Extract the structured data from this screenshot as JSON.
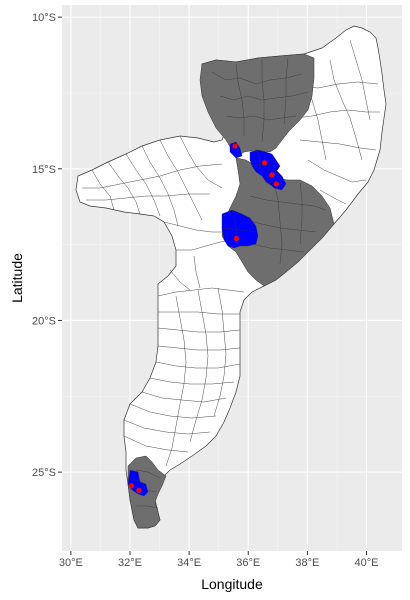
{
  "map": {
    "xlabel": "Longitude",
    "ylabel": "Latitude",
    "x_ticks": [
      {
        "value": 30,
        "label": "30°E"
      },
      {
        "value": 32,
        "label": "32°E"
      },
      {
        "value": 34,
        "label": "34°E"
      },
      {
        "value": 36,
        "label": "36°E"
      },
      {
        "value": 38,
        "label": "38°E"
      },
      {
        "value": 40,
        "label": "40°E"
      }
    ],
    "y_ticks": [
      {
        "value": -10,
        "label": "10°S"
      },
      {
        "value": -15,
        "label": "15°S"
      },
      {
        "value": -20,
        "label": "20°S"
      },
      {
        "value": -25,
        "label": "25°S"
      }
    ],
    "xlim": [
      29.7,
      41.2
    ],
    "ylim": [
      -27.6,
      -9.6
    ],
    "colors": {
      "panel_background": "#ebebeb",
      "grid_major": "#ffffff",
      "district_fill": "#ffffff",
      "district_border": "#333333",
      "selected_region_fill": "#6e6e6e",
      "highlighted_district_fill": "#0000ff",
      "point_color": "#ff0000"
    },
    "points": [
      {
        "lon": 35.55,
        "lat": -14.25
      },
      {
        "lon": 36.55,
        "lat": -14.8
      },
      {
        "lon": 36.8,
        "lat": -15.2
      },
      {
        "lon": 36.95,
        "lat": -15.5
      },
      {
        "lon": 35.6,
        "lat": -17.3
      },
      {
        "lon": 32.05,
        "lat": -25.45
      },
      {
        "lon": 32.3,
        "lat": -25.6
      }
    ]
  }
}
